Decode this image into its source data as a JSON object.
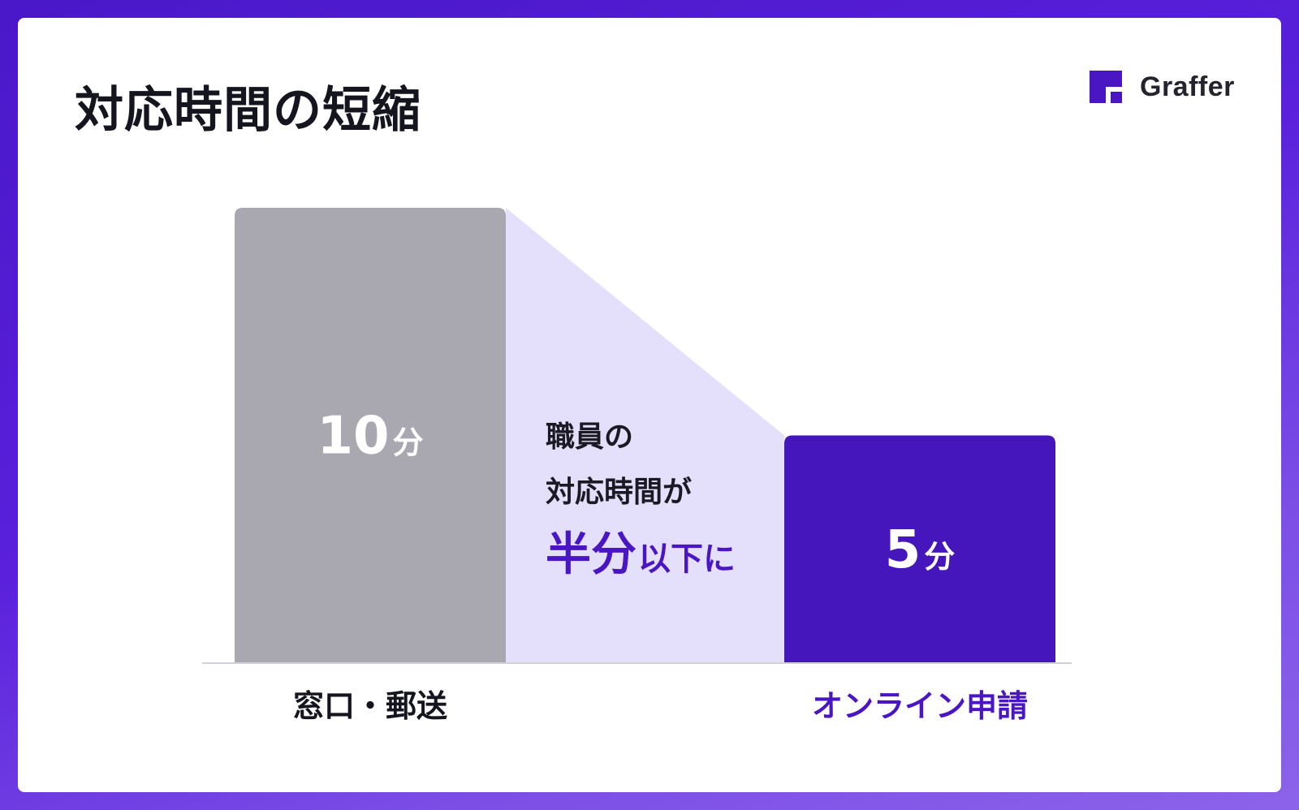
{
  "title": "対応時間の短縮",
  "brand": {
    "name": "Graffer",
    "color": "#4a16c4"
  },
  "callout": {
    "line1": "職員の",
    "line2": "対応時間が",
    "line3_emphasis": "半分",
    "line3_rest": "以下に",
    "text_color": "#1b1a24",
    "emphasis_color": "#4a16c4"
  },
  "chart_data": {
    "type": "bar",
    "categories": [
      "窓口・郵送",
      "オンライン申請"
    ],
    "values": [
      10,
      5
    ],
    "unit": "分",
    "value_labels": [
      "10",
      "5"
    ],
    "bar_colors": [
      "#a9a7b0",
      "#4516bb"
    ],
    "category_label_colors": [
      "#15151f",
      "#4a16c4"
    ],
    "shade_color": "#e4e0fb",
    "ylim": [
      0,
      10
    ],
    "grid": false,
    "legend": "none"
  }
}
